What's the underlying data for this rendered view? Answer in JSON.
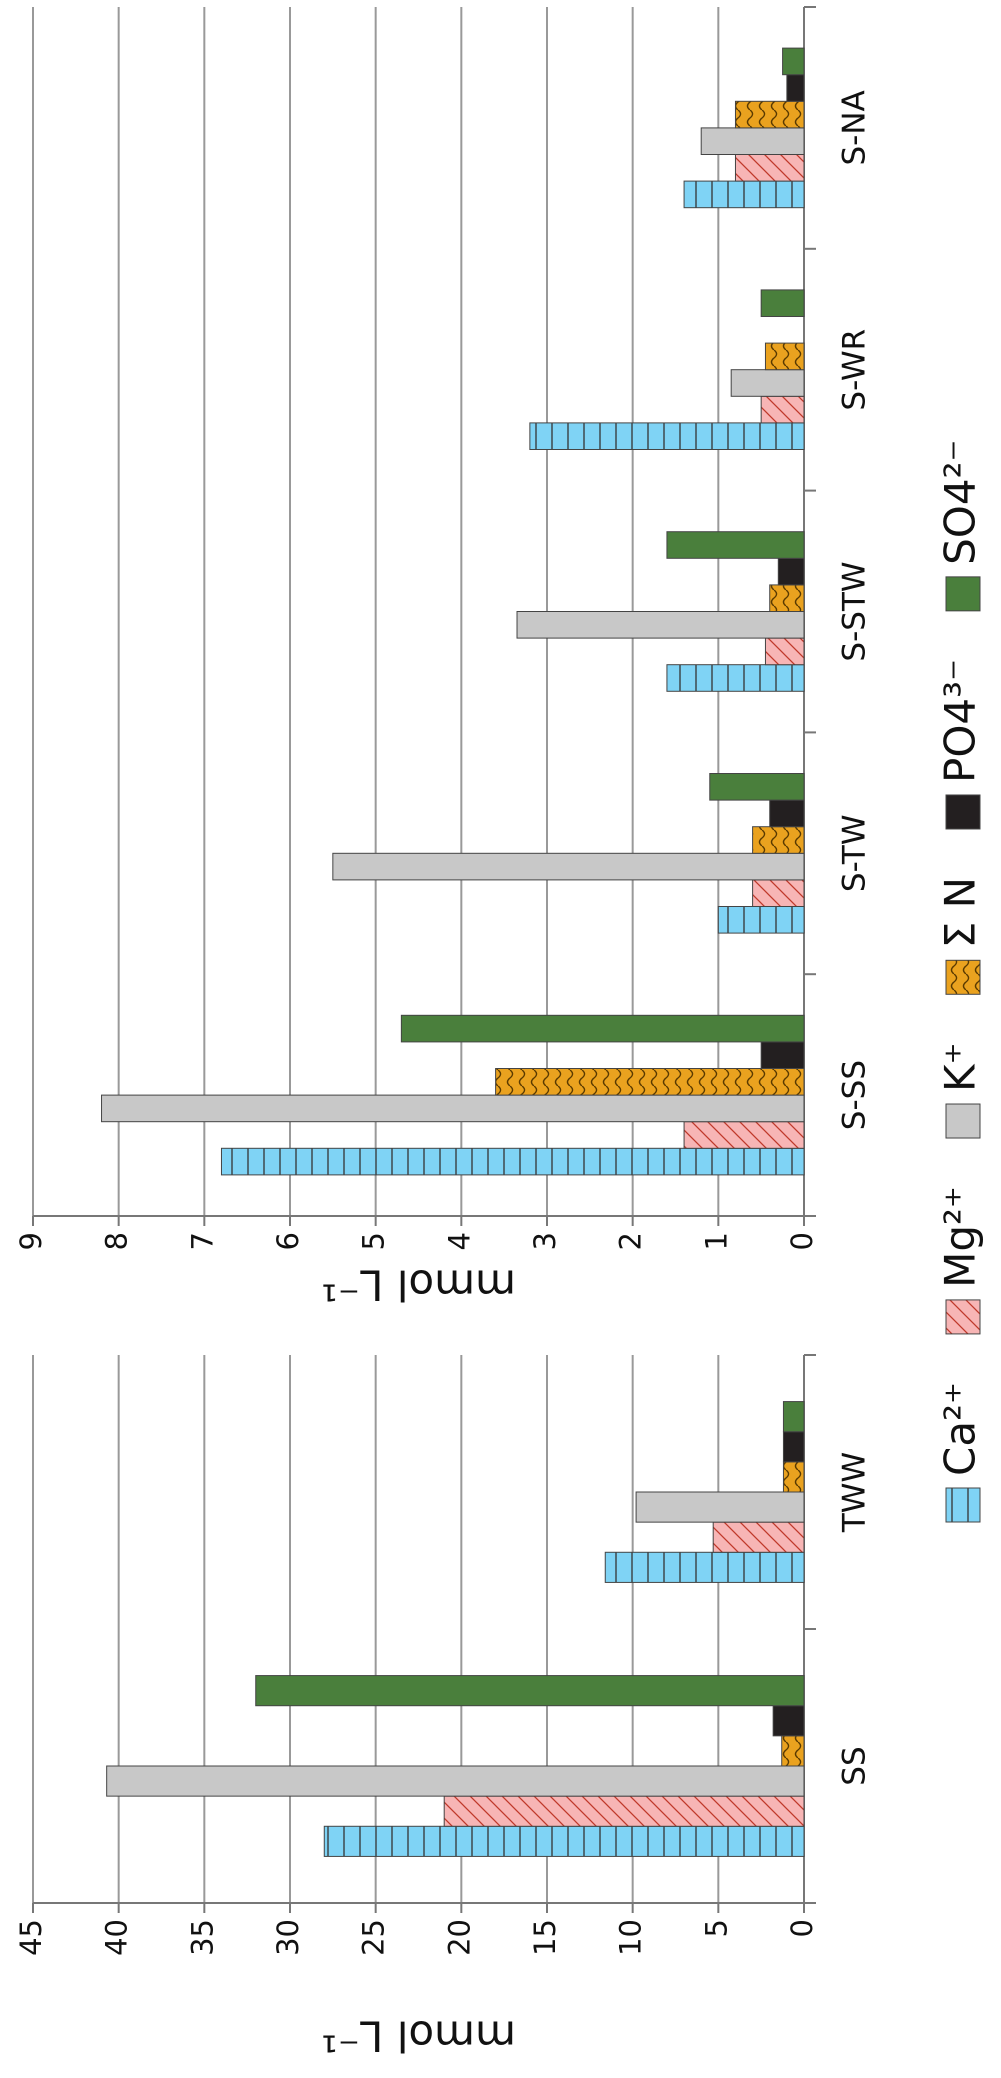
{
  "chart_data": [
    {
      "type": "bar",
      "y_label": "mmol L⁻¹",
      "categories": [
        "SS",
        "TWW"
      ],
      "series": [
        {
          "name": "Ca²⁺",
          "color": "#7fd3f5",
          "pattern": "lines",
          "values": [
            28,
            11.6
          ]
        },
        {
          "name": "Mg²⁺",
          "color": "#f7b5b5",
          "pattern": "diagonal",
          "values": [
            21,
            5.3
          ]
        },
        {
          "name": "K⁺",
          "color": "#c8c8c8",
          "pattern": "none",
          "values": [
            40.7,
            9.8
          ]
        },
        {
          "name": "Σ N",
          "color": "#eaa21f",
          "pattern": "wave",
          "values": [
            1.3,
            1.2
          ]
        },
        {
          "name": "PO4³⁻",
          "color": "#231f20",
          "pattern": "none",
          "values": [
            1.8,
            1.2
          ]
        },
        {
          "name": "SO4²⁻",
          "color": "#4a7f3c",
          "pattern": "none",
          "values": [
            32,
            1.2
          ]
        }
      ],
      "ylim": [
        0,
        45
      ],
      "yticks": [
        0,
        5,
        10,
        15,
        20,
        25,
        30,
        35,
        40,
        45
      ],
      "grid": true
    },
    {
      "type": "bar",
      "y_label": "mmol L⁻¹",
      "categories": [
        "S-SS",
        "S-TW",
        "S-STW",
        "S-WR",
        "S-NA"
      ],
      "series": [
        {
          "color": "#7fd3f5",
          "pattern": "lines",
          "values": [
            6.8,
            1.0,
            1.6,
            3.2,
            1.4
          ]
        },
        {
          "color": "#f7b5b5",
          "pattern": "diagonal",
          "values": [
            1.4,
            0.6,
            0.45,
            0.5,
            0.8
          ]
        },
        {
          "color": "#c8c8c8",
          "pattern": "none",
          "values": [
            8.2,
            5.5,
            3.35,
            0.85,
            1.2
          ]
        },
        {
          "color": "#eaa21f",
          "pattern": "wave",
          "values": [
            3.6,
            0.6,
            0.4,
            0.45,
            0.8
          ]
        },
        {
          "color": "#231f20",
          "pattern": "none",
          "values": [
            0.5,
            0.4,
            0.3,
            null,
            0.2
          ]
        },
        {
          "color": "#4a7f3c",
          "pattern": "none",
          "values": [
            4.7,
            1.1,
            1.6,
            0.5,
            0.25
          ]
        }
      ],
      "ylim": [
        0,
        9
      ],
      "yticks": [
        0,
        1,
        2,
        3,
        4,
        5,
        6,
        7,
        8,
        9
      ],
      "grid": true
    }
  ]
}
